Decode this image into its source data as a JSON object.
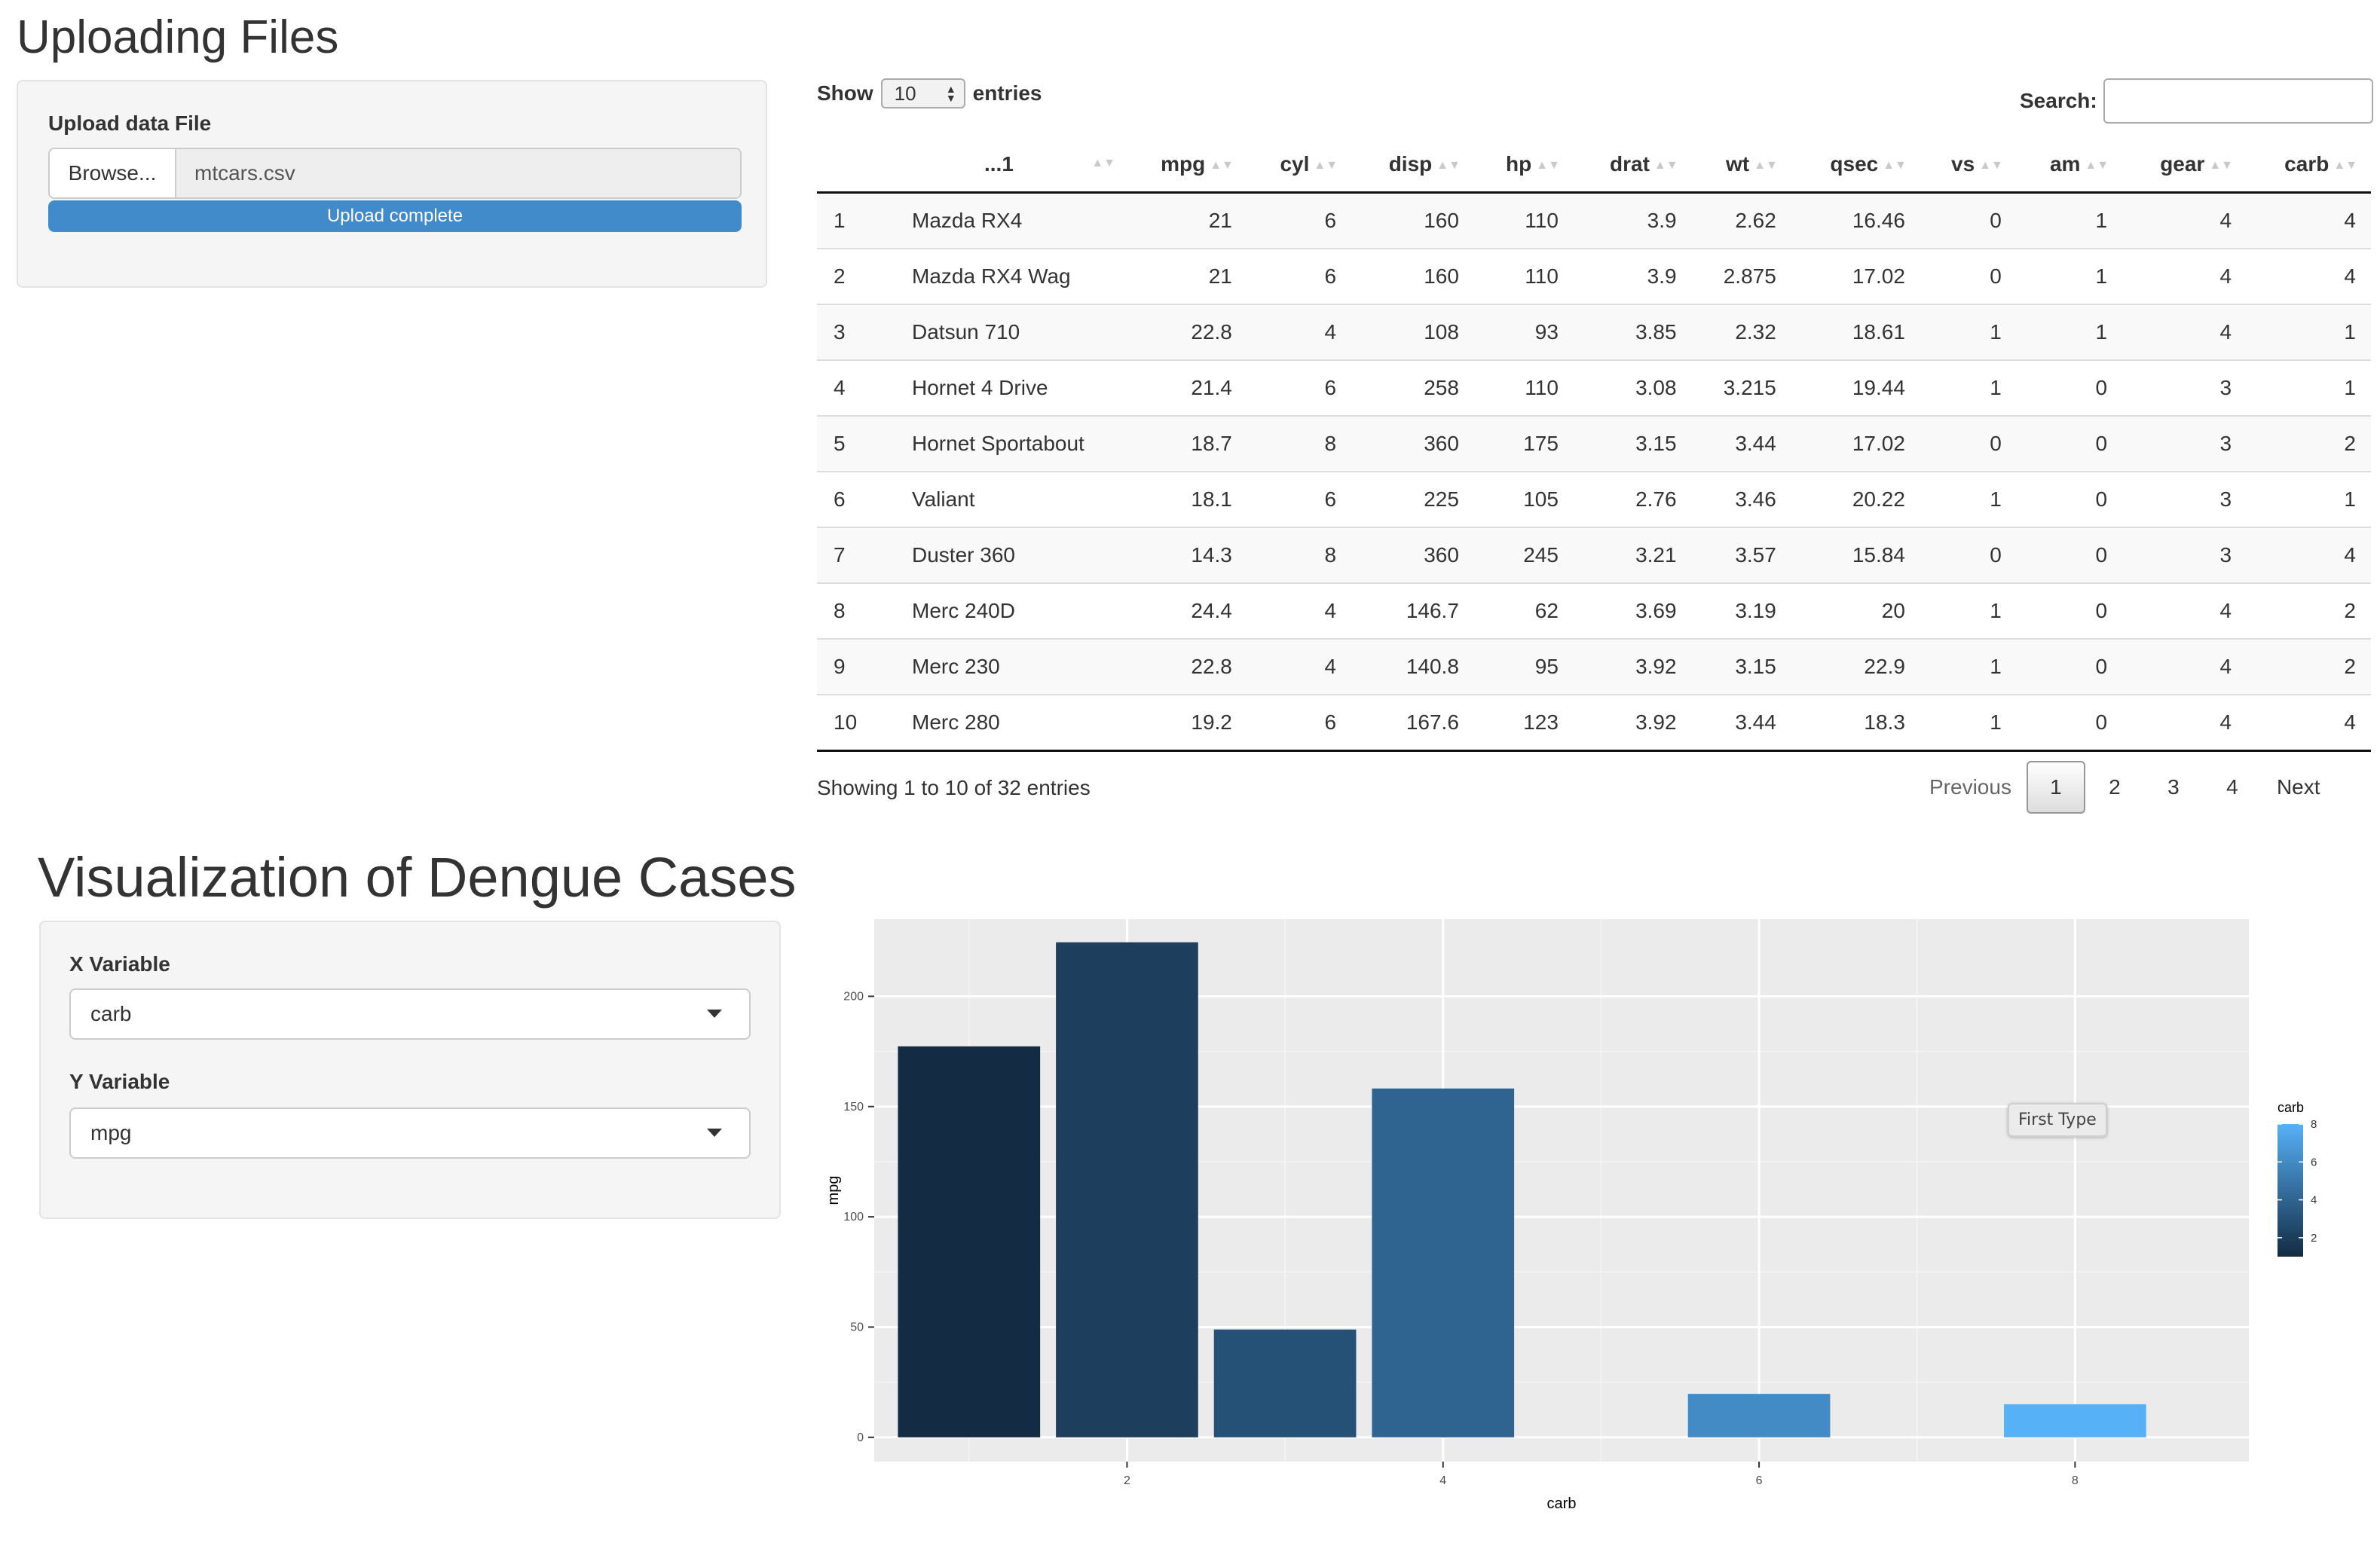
{
  "upload": {
    "title": "Uploading Files",
    "label": "Upload data File",
    "browse_label": "Browse...",
    "file_name": "mtcars.csv",
    "progress_text": "Upload complete",
    "progress_pct": 100
  },
  "table": {
    "show_label": "Show",
    "entries_label": "entries",
    "length_value": "10",
    "search_label": "Search:",
    "search_value": "",
    "columns": [
      "...1",
      "mpg",
      "cyl",
      "disp",
      "hp",
      "drat",
      "wt",
      "qsec",
      "vs",
      "am",
      "gear",
      "carb"
    ],
    "rows": [
      [
        "1",
        "Mazda RX4",
        "21",
        "6",
        "160",
        "110",
        "3.9",
        "2.62",
        "16.46",
        "0",
        "1",
        "4",
        "4"
      ],
      [
        "2",
        "Mazda RX4 Wag",
        "21",
        "6",
        "160",
        "110",
        "3.9",
        "2.875",
        "17.02",
        "0",
        "1",
        "4",
        "4"
      ],
      [
        "3",
        "Datsun 710",
        "22.8",
        "4",
        "108",
        "93",
        "3.85",
        "2.32",
        "18.61",
        "1",
        "1",
        "4",
        "1"
      ],
      [
        "4",
        "Hornet 4 Drive",
        "21.4",
        "6",
        "258",
        "110",
        "3.08",
        "3.215",
        "19.44",
        "1",
        "0",
        "3",
        "1"
      ],
      [
        "5",
        "Hornet Sportabout",
        "18.7",
        "8",
        "360",
        "175",
        "3.15",
        "3.44",
        "17.02",
        "0",
        "0",
        "3",
        "2"
      ],
      [
        "6",
        "Valiant",
        "18.1",
        "6",
        "225",
        "105",
        "2.76",
        "3.46",
        "20.22",
        "1",
        "0",
        "3",
        "1"
      ],
      [
        "7",
        "Duster 360",
        "14.3",
        "8",
        "360",
        "245",
        "3.21",
        "3.57",
        "15.84",
        "0",
        "0",
        "3",
        "4"
      ],
      [
        "8",
        "Merc 240D",
        "24.4",
        "4",
        "146.7",
        "62",
        "3.69",
        "3.19",
        "20",
        "1",
        "0",
        "4",
        "2"
      ],
      [
        "9",
        "Merc 230",
        "22.8",
        "4",
        "140.8",
        "95",
        "3.92",
        "3.15",
        "22.9",
        "1",
        "0",
        "4",
        "2"
      ],
      [
        "10",
        "Merc 280",
        "19.2",
        "6",
        "167.6",
        "123",
        "3.92",
        "3.44",
        "18.3",
        "1",
        "0",
        "4",
        "4"
      ]
    ],
    "info": "Showing 1 to 10 of 32 entries",
    "pagination": {
      "previous": "Previous",
      "pages": [
        "1",
        "2",
        "3",
        "4"
      ],
      "current": "1",
      "next": "Next"
    }
  },
  "viz": {
    "title": "Visualization of Dengue Cases",
    "x_label": "X Variable",
    "x_value": "carb",
    "y_label": "Y Variable",
    "y_value": "mpg",
    "tooltip": "First Type"
  },
  "chart_data": {
    "type": "bar",
    "x": [
      1,
      2,
      3,
      4,
      6,
      8
    ],
    "values": [
      177.3,
      224.5,
      48.9,
      158.2,
      19.7,
      15.0
    ],
    "xlabel": "carb",
    "ylabel": "mpg",
    "xticks": [
      2,
      4,
      6,
      8
    ],
    "yticks": [
      0,
      50,
      100,
      150,
      200
    ],
    "ylim": [
      -11,
      235
    ],
    "xlim": [
      0.4,
      9.1
    ],
    "grid": true,
    "legend": {
      "title": "carb",
      "position": "right",
      "ticks": [
        2,
        4,
        6,
        8
      ],
      "low_color": "#132B43",
      "high_color": "#56B1F7"
    },
    "panel_background": "#EBEBEB"
  }
}
